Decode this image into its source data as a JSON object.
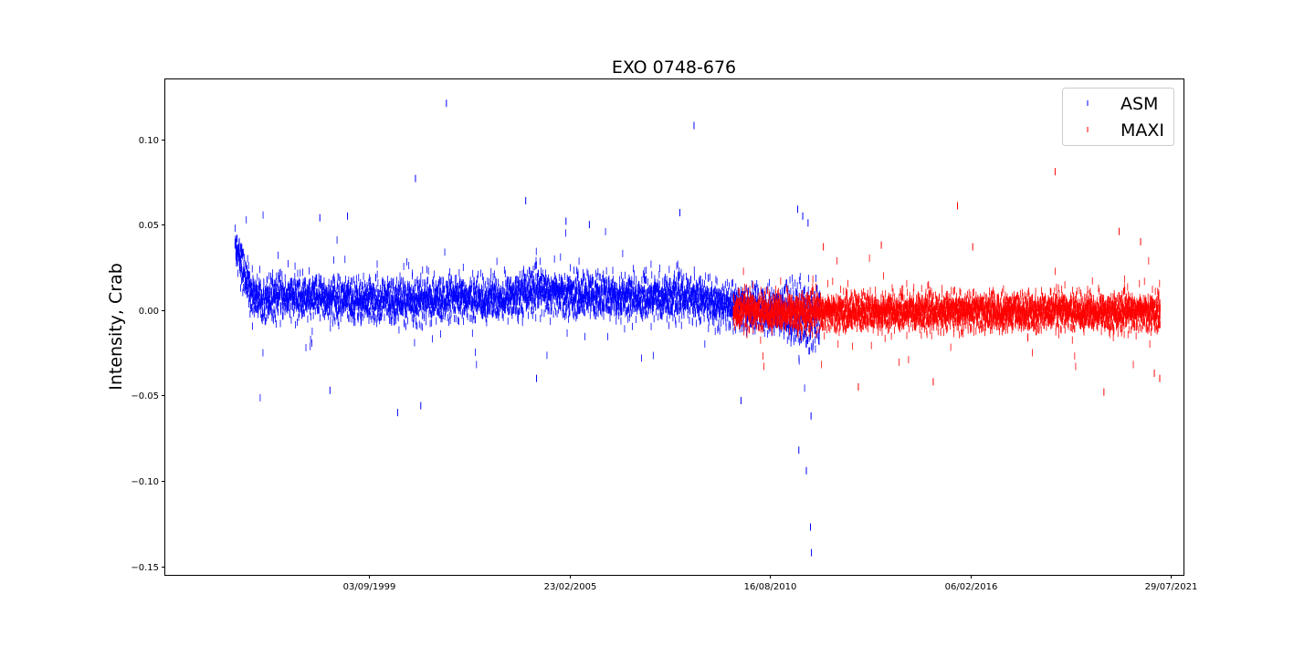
{
  "chart_data": {
    "type": "scatter",
    "title": "EXO 0748-676",
    "xlabel": "",
    "ylabel": "Intensity, Crab",
    "x_axis_type": "date",
    "xlim": [
      "1994-02-09",
      "2021-12-03"
    ],
    "ylim": [
      -0.155,
      0.135
    ],
    "x_ticks": [
      "03/09/1999",
      "23/02/2005",
      "16/08/2010",
      "06/02/2016",
      "29/07/2021"
    ],
    "y_ticks": [
      "0.10",
      "0.05",
      "0.00",
      "−0.05",
      "−0.10",
      "−0.15"
    ],
    "y_tick_values": [
      0.1,
      0.05,
      0.0,
      -0.05,
      -0.1,
      -0.15
    ],
    "grid": false,
    "legend_position": "top-right",
    "series": [
      {
        "name": "ASM",
        "color": "#0000ff",
        "marker": "vertical-tick",
        "date_range": [
          "1996-01-05",
          "2011-12-28"
        ],
        "typical_level": 0.006,
        "scatter_spread": 0.006,
        "segments": [
          {
            "x": [
              "1996-01-05",
              "1996-04-01",
              "1996-07-01",
              "1999-09-03",
              "2002-01-01",
              "2003-06-01",
              "2004-01-01",
              "2005-02-23",
              "2006-06-01",
              "2007-06-01",
              "2008-06-01",
              "2009-01-01",
              "2010-01-01",
              "2010-08-16",
              "2011-06-01",
              "2011-12-28"
            ],
            "level": [
              0.04,
              0.022,
              0.008,
              0.006,
              0.006,
              0.007,
              0.012,
              0.009,
              0.008,
              0.007,
              0.008,
              0.004,
              0.001,
              0.0,
              -0.002,
              -0.004
            ]
          }
        ],
        "outliers": [
          {
            "x": "2001-10-15",
            "y": 0.121
          },
          {
            "x": "2008-07-20",
            "y": 0.108
          },
          {
            "x": "2000-12-10",
            "y": 0.077
          },
          {
            "x": "2003-12-15",
            "y": 0.064
          },
          {
            "x": "1999-02-01",
            "y": 0.055
          },
          {
            "x": "1998-05-01",
            "y": 0.054
          },
          {
            "x": "2008-03-01",
            "y": 0.057
          },
          {
            "x": "2005-01-20",
            "y": 0.052
          },
          {
            "x": "2005-09-10",
            "y": 0.05
          },
          {
            "x": "2011-05-20",
            "y": 0.059
          },
          {
            "x": "2011-07-10",
            "y": 0.055
          },
          {
            "x": "2011-09-01",
            "y": 0.051
          },
          {
            "x": "2000-06-15",
            "y": -0.06
          },
          {
            "x": "2001-02-01",
            "y": -0.056
          },
          {
            "x": "1998-08-10",
            "y": -0.047
          },
          {
            "x": "2004-04-01",
            "y": -0.04
          },
          {
            "x": "2009-11-01",
            "y": -0.053
          },
          {
            "x": "2011-10-01",
            "y": -0.062
          },
          {
            "x": "2011-06-01",
            "y": -0.082
          },
          {
            "x": "2011-08-15",
            "y": -0.094
          },
          {
            "x": "2011-09-25",
            "y": -0.127
          },
          {
            "x": "2011-10-05",
            "y": -0.142
          }
        ]
      },
      {
        "name": "MAXI",
        "color": "#ff0000",
        "marker": "vertical-tick",
        "date_range": [
          "2009-08-15",
          "2021-04-15"
        ],
        "typical_level": -0.001,
        "scatter_spread": 0.005,
        "outliers": [
          {
            "x": "2018-06-01",
            "y": 0.081
          },
          {
            "x": "2015-10-01",
            "y": 0.061
          },
          {
            "x": "2020-03-01",
            "y": 0.046
          },
          {
            "x": "2020-10-01",
            "y": 0.04
          },
          {
            "x": "2013-09-01",
            "y": 0.038
          },
          {
            "x": "2016-03-01",
            "y": 0.037
          },
          {
            "x": "2012-02-01",
            "y": 0.037
          },
          {
            "x": "2013-01-15",
            "y": -0.045
          },
          {
            "x": "2015-02-01",
            "y": -0.042
          },
          {
            "x": "2019-10-01",
            "y": -0.048
          },
          {
            "x": "2021-02-15",
            "y": -0.037
          },
          {
            "x": "2021-04-10",
            "y": -0.04
          }
        ]
      }
    ]
  }
}
